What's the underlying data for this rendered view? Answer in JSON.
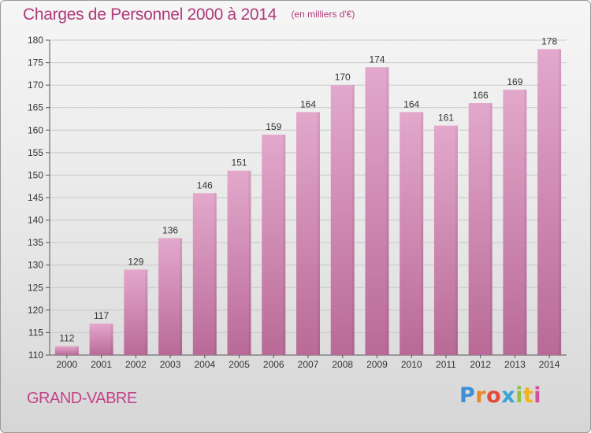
{
  "title": "Charges de Personnel 2000 à 2014",
  "subtitle": "(en milliers d'€)",
  "place_name": "GRAND-VABRE",
  "logo": {
    "text": "Proxiti",
    "colors": [
      "#3a8fd6",
      "#e8872a",
      "#e24b3a",
      "#3aa4d9",
      "#8cc43f",
      "#f2b21c",
      "#d64f9a"
    ]
  },
  "colors": {
    "accent": "#b03a7a",
    "bar_top": "#e3a8cc",
    "bar_bottom": "#b96a97"
  },
  "chart_data": {
    "type": "bar",
    "categories": [
      "2000",
      "2001",
      "2002",
      "2003",
      "2004",
      "2005",
      "2006",
      "2007",
      "2008",
      "2009",
      "2010",
      "2011",
      "2012",
      "2013",
      "2014"
    ],
    "values": [
      112,
      117,
      129,
      136,
      146,
      151,
      159,
      164,
      170,
      174,
      164,
      161,
      166,
      169,
      178
    ],
    "ylim": [
      110,
      180
    ],
    "yticks": [
      110,
      115,
      120,
      125,
      130,
      135,
      140,
      145,
      150,
      155,
      160,
      165,
      170,
      175,
      180
    ],
    "grid": true,
    "legend": "none"
  }
}
